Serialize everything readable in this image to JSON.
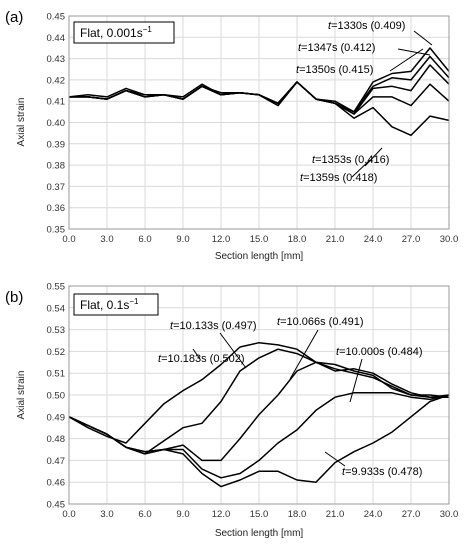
{
  "chart_data": [
    {
      "type": "line",
      "panel_label": "(a)",
      "condition": "Flat, 0.001s",
      "condition_exp": "−1",
      "xlabel": "Section length [mm]",
      "ylabel": "Axial strain",
      "xlim": [
        0,
        30
      ],
      "ylim": [
        0.35,
        0.45
      ],
      "xticks": [
        "0.0",
        "3.0",
        "6.0",
        "9.0",
        "12.0",
        "15.0",
        "18.0",
        "21.0",
        "24.0",
        "27.0",
        "30.0"
      ],
      "yticks": [
        "0.35",
        "0.36",
        "0.37",
        "0.38",
        "0.39",
        "0.40",
        "0.41",
        "0.42",
        "0.43",
        "0.44",
        "0.45"
      ],
      "grid": true,
      "x": [
        0,
        1.5,
        3,
        4.5,
        6,
        7.5,
        9,
        10.5,
        12,
        13.5,
        15,
        16.5,
        18,
        19.5,
        21,
        22.5,
        24,
        25.5,
        27,
        28.5,
        30
      ],
      "series": [
        {
          "t": "1359s",
          "strain": "0.418",
          "values": [
            0.412,
            0.413,
            0.412,
            0.416,
            0.413,
            0.413,
            0.412,
            0.418,
            0.413,
            0.414,
            0.413,
            0.409,
            0.419,
            0.411,
            0.41,
            0.405,
            0.419,
            0.423,
            0.424,
            0.435,
            0.424
          ]
        },
        {
          "t": "1353s",
          "strain": "0.416",
          "values": [
            0.412,
            0.412,
            0.411,
            0.415,
            0.413,
            0.413,
            0.411,
            0.417,
            0.414,
            0.414,
            0.413,
            0.409,
            0.419,
            0.411,
            0.409,
            0.405,
            0.417,
            0.421,
            0.42,
            0.431,
            0.421
          ]
        },
        {
          "t": "1350s",
          "strain": "0.415",
          "values": [
            0.412,
            0.412,
            0.411,
            0.415,
            0.412,
            0.413,
            0.411,
            0.417,
            0.413,
            0.414,
            0.413,
            0.409,
            0.419,
            0.411,
            0.409,
            0.404,
            0.416,
            0.417,
            0.415,
            0.427,
            0.418
          ]
        },
        {
          "t": "1347s",
          "strain": "0.412",
          "values": [
            0.412,
            0.412,
            0.411,
            0.415,
            0.412,
            0.413,
            0.411,
            0.417,
            0.413,
            0.414,
            0.413,
            0.408,
            0.419,
            0.411,
            0.409,
            0.404,
            0.412,
            0.412,
            0.408,
            0.418,
            0.41
          ]
        },
        {
          "t": "1330s",
          "strain": "0.409",
          "values": [
            0.412,
            0.412,
            0.411,
            0.415,
            0.412,
            0.413,
            0.411,
            0.417,
            0.413,
            0.414,
            0.413,
            0.408,
            0.419,
            0.411,
            0.409,
            0.402,
            0.407,
            0.398,
            0.394,
            0.403,
            0.401
          ]
        }
      ]
    },
    {
      "type": "line",
      "panel_label": "(b)",
      "condition": "Flat, 0.1s",
      "condition_exp": "−1",
      "xlabel": "Section length [mm]",
      "ylabel": "Axial strain",
      "xlim": [
        0,
        30
      ],
      "ylim": [
        0.45,
        0.55
      ],
      "xticks": [
        "0.0",
        "3.0",
        "6.0",
        "9.0",
        "12.0",
        "15.0",
        "18.0",
        "21.0",
        "24.0",
        "27.0",
        "30.0"
      ],
      "yticks": [
        "0.45",
        "0.46",
        "0.47",
        "0.48",
        "0.49",
        "0.50",
        "0.51",
        "0.52",
        "0.53",
        "0.54",
        "0.55"
      ],
      "grid": true,
      "x": [
        0,
        1.5,
        3,
        4.5,
        6,
        7.5,
        9,
        10.5,
        12,
        13.5,
        15,
        16.5,
        18,
        19.5,
        21,
        22.5,
        24,
        25.5,
        27,
        28.5,
        30
      ],
      "series": [
        {
          "t": "10.183s",
          "strain": "0.502",
          "values": [
            0.49,
            0.485,
            0.481,
            0.478,
            0.487,
            0.496,
            0.502,
            0.507,
            0.514,
            0.522,
            0.524,
            0.523,
            0.521,
            0.515,
            0.511,
            0.512,
            0.51,
            0.505,
            0.501,
            0.499,
            0.499
          ]
        },
        {
          "t": "10.133s",
          "strain": "0.497",
          "values": [
            0.49,
            0.486,
            0.482,
            0.476,
            0.473,
            0.479,
            0.485,
            0.487,
            0.497,
            0.511,
            0.517,
            0.521,
            0.519,
            0.515,
            0.512,
            0.51,
            0.508,
            0.504,
            0.5,
            0.499,
            0.5
          ]
        },
        {
          "t": "10.066s",
          "strain": "0.491",
          "values": [
            0.49,
            0.486,
            0.482,
            0.476,
            0.474,
            0.475,
            0.477,
            0.47,
            0.47,
            0.48,
            0.491,
            0.5,
            0.511,
            0.515,
            0.514,
            0.511,
            0.509,
            0.503,
            0.5,
            0.5,
            0.499
          ]
        },
        {
          "t": "10.000s",
          "strain": "0.484",
          "values": [
            0.49,
            0.486,
            0.482,
            0.476,
            0.474,
            0.475,
            0.475,
            0.466,
            0.462,
            0.464,
            0.47,
            0.478,
            0.484,
            0.493,
            0.499,
            0.501,
            0.501,
            0.501,
            0.499,
            0.498,
            0.5
          ]
        },
        {
          "t": "9.933s",
          "strain": "0.478",
          "values": [
            0.49,
            0.486,
            0.482,
            0.476,
            0.473,
            0.475,
            0.473,
            0.464,
            0.458,
            0.461,
            0.465,
            0.465,
            0.461,
            0.46,
            0.469,
            0.474,
            0.478,
            0.483,
            0.49,
            0.497,
            0.5
          ]
        }
      ]
    }
  ]
}
